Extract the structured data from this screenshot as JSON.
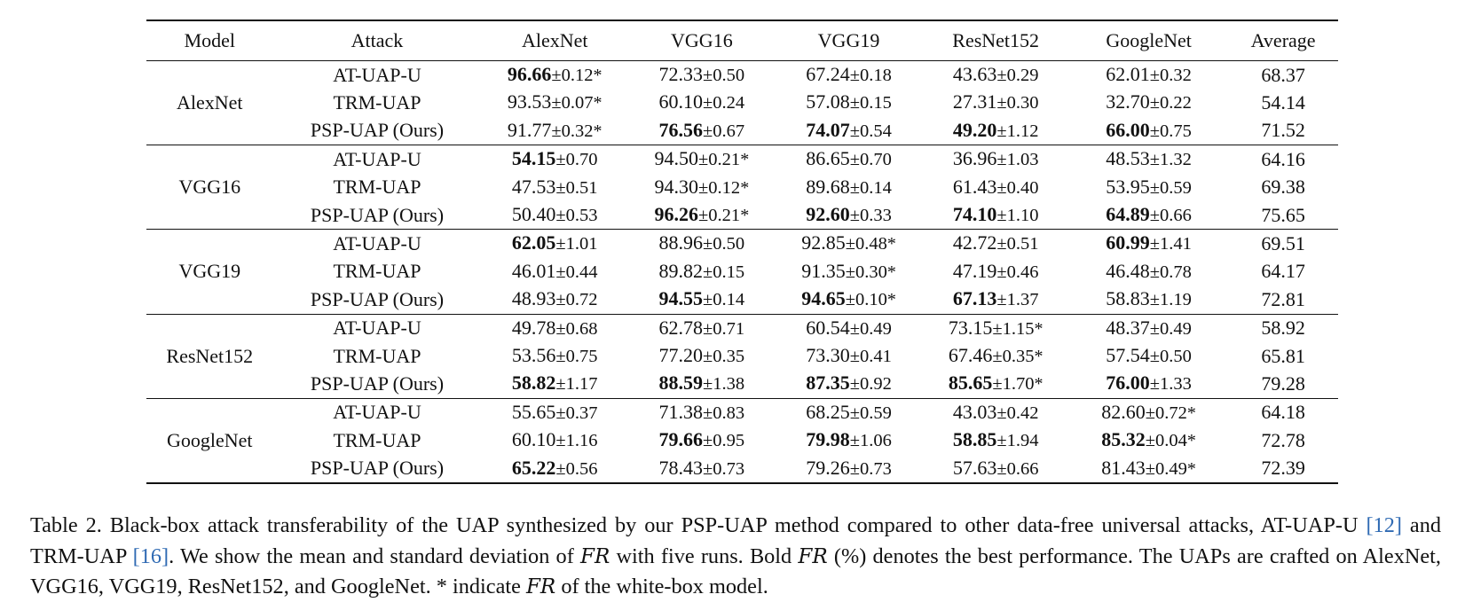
{
  "table": {
    "headers": [
      "Model",
      "Attack",
      "AlexNet",
      "VGG16",
      "VGG19",
      "ResNet152",
      "GoogleNet",
      "Average"
    ],
    "groups": [
      {
        "model": "AlexNet",
        "rows": [
          {
            "attack": "AT-UAP-U",
            "attack_bold": false,
            "cells": [
              {
                "v": "96.66",
                "pm": "±0.12",
                "star": "*",
                "b": true
              },
              {
                "v": "72.33",
                "pm": "±0.50",
                "star": "",
                "b": false
              },
              {
                "v": "67.24",
                "pm": "±0.18",
                "star": "",
                "b": false
              },
              {
                "v": "43.63",
                "pm": "±0.29",
                "star": "",
                "b": false
              },
              {
                "v": "62.01",
                "pm": "±0.32",
                "star": "",
                "b": false
              }
            ],
            "avg": "68.37",
            "avg_bold": false
          },
          {
            "attack": "TRM-UAP",
            "attack_bold": false,
            "cells": [
              {
                "v": "93.53",
                "pm": "±0.07",
                "star": "*",
                "b": false
              },
              {
                "v": "60.10",
                "pm": "±0.24",
                "star": "",
                "b": false
              },
              {
                "v": "57.08",
                "pm": "±0.15",
                "star": "",
                "b": false
              },
              {
                "v": "27.31",
                "pm": "±0.30",
                "star": "",
                "b": false
              },
              {
                "v": "32.70",
                "pm": "±0.22",
                "star": "",
                "b": false
              }
            ],
            "avg": "54.14",
            "avg_bold": false
          },
          {
            "attack": "PSP-UAP (Ours)",
            "attack_bold": true,
            "cells": [
              {
                "v": "91.77",
                "pm": "±0.32",
                "star": "*",
                "b": false
              },
              {
                "v": "76.56",
                "pm": "±0.67",
                "star": "",
                "b": true
              },
              {
                "v": "74.07",
                "pm": "±0.54",
                "star": "",
                "b": true
              },
              {
                "v": "49.20",
                "pm": "±1.12",
                "star": "",
                "b": true
              },
              {
                "v": "66.00",
                "pm": "±0.75",
                "star": "",
                "b": true
              }
            ],
            "avg": "71.52",
            "avg_bold": true
          }
        ]
      },
      {
        "model": "VGG16",
        "rows": [
          {
            "attack": "AT-UAP-U",
            "attack_bold": false,
            "cells": [
              {
                "v": "54.15",
                "pm": "±0.70",
                "star": "",
                "b": true
              },
              {
                "v": "94.50",
                "pm": "±0.21",
                "star": "*",
                "b": false
              },
              {
                "v": "86.65",
                "pm": "±0.70",
                "star": "",
                "b": false
              },
              {
                "v": "36.96",
                "pm": "±1.03",
                "star": "",
                "b": false
              },
              {
                "v": "48.53",
                "pm": "±1.32",
                "star": "",
                "b": false
              }
            ],
            "avg": "64.16",
            "avg_bold": false
          },
          {
            "attack": "TRM-UAP",
            "attack_bold": false,
            "cells": [
              {
                "v": "47.53",
                "pm": "±0.51",
                "star": "",
                "b": false
              },
              {
                "v": "94.30",
                "pm": "±0.12",
                "star": "*",
                "b": false
              },
              {
                "v": "89.68",
                "pm": "±0.14",
                "star": "",
                "b": false
              },
              {
                "v": "61.43",
                "pm": "±0.40",
                "star": "",
                "b": false
              },
              {
                "v": "53.95",
                "pm": "±0.59",
                "star": "",
                "b": false
              }
            ],
            "avg": "69.38",
            "avg_bold": false
          },
          {
            "attack": "PSP-UAP (Ours)",
            "attack_bold": true,
            "cells": [
              {
                "v": "50.40",
                "pm": "±0.53",
                "star": "",
                "b": false
              },
              {
                "v": "96.26",
                "pm": "±0.21",
                "star": "*",
                "b": true
              },
              {
                "v": "92.60",
                "pm": "±0.33",
                "star": "",
                "b": true
              },
              {
                "v": "74.10",
                "pm": "±1.10",
                "star": "",
                "b": true
              },
              {
                "v": "64.89",
                "pm": "±0.66",
                "star": "",
                "b": true
              }
            ],
            "avg": "75.65",
            "avg_bold": true
          }
        ]
      },
      {
        "model": "VGG19",
        "rows": [
          {
            "attack": "AT-UAP-U",
            "attack_bold": false,
            "cells": [
              {
                "v": "62.05",
                "pm": "±1.01",
                "star": "",
                "b": true
              },
              {
                "v": "88.96",
                "pm": "±0.50",
                "star": "",
                "b": false
              },
              {
                "v": "92.85",
                "pm": "±0.48",
                "star": "*",
                "b": false
              },
              {
                "v": "42.72",
                "pm": "±0.51",
                "star": "",
                "b": false
              },
              {
                "v": "60.99",
                "pm": "±1.41",
                "star": "",
                "b": true
              }
            ],
            "avg": "69.51",
            "avg_bold": false
          },
          {
            "attack": "TRM-UAP",
            "attack_bold": false,
            "cells": [
              {
                "v": "46.01",
                "pm": "±0.44",
                "star": "",
                "b": false
              },
              {
                "v": "89.82",
                "pm": "±0.15",
                "star": "",
                "b": false
              },
              {
                "v": "91.35",
                "pm": "±0.30",
                "star": "*",
                "b": false
              },
              {
                "v": "47.19",
                "pm": "±0.46",
                "star": "",
                "b": false
              },
              {
                "v": "46.48",
                "pm": "±0.78",
                "star": "",
                "b": false
              }
            ],
            "avg": "64.17",
            "avg_bold": false
          },
          {
            "attack": "PSP-UAP (Ours)",
            "attack_bold": true,
            "cells": [
              {
                "v": "48.93",
                "pm": "±0.72",
                "star": "",
                "b": false
              },
              {
                "v": "94.55",
                "pm": "±0.14",
                "star": "",
                "b": true
              },
              {
                "v": "94.65",
                "pm": "±0.10",
                "star": "*",
                "b": true
              },
              {
                "v": "67.13",
                "pm": "±1.37",
                "star": "",
                "b": true
              },
              {
                "v": "58.83",
                "pm": "±1.19",
                "star": "",
                "b": false
              }
            ],
            "avg": "72.81",
            "avg_bold": true
          }
        ]
      },
      {
        "model": "ResNet152",
        "rows": [
          {
            "attack": "AT-UAP-U",
            "attack_bold": false,
            "cells": [
              {
                "v": "49.78",
                "pm": "±0.68",
                "star": "",
                "b": false
              },
              {
                "v": "62.78",
                "pm": "±0.71",
                "star": "",
                "b": false
              },
              {
                "v": "60.54",
                "pm": "±0.49",
                "star": "",
                "b": false
              },
              {
                "v": "73.15",
                "pm": "±1.15",
                "star": "*",
                "b": false
              },
              {
                "v": "48.37",
                "pm": "±0.49",
                "star": "",
                "b": false
              }
            ],
            "avg": "58.92",
            "avg_bold": false
          },
          {
            "attack": "TRM-UAP",
            "attack_bold": false,
            "cells": [
              {
                "v": "53.56",
                "pm": "±0.75",
                "star": "",
                "b": false
              },
              {
                "v": "77.20",
                "pm": "±0.35",
                "star": "",
                "b": false
              },
              {
                "v": "73.30",
                "pm": "±0.41",
                "star": "",
                "b": false
              },
              {
                "v": "67.46",
                "pm": "±0.35",
                "star": "*",
                "b": false
              },
              {
                "v": "57.54",
                "pm": "±0.50",
                "star": "",
                "b": false
              }
            ],
            "avg": "65.81",
            "avg_bold": false
          },
          {
            "attack": "PSP-UAP (Ours)",
            "attack_bold": true,
            "cells": [
              {
                "v": "58.82",
                "pm": "±1.17",
                "star": "",
                "b": true
              },
              {
                "v": "88.59",
                "pm": "±1.38",
                "star": "",
                "b": true
              },
              {
                "v": "87.35",
                "pm": "±0.92",
                "star": "",
                "b": true
              },
              {
                "v": "85.65",
                "pm": "±1.70",
                "star": "*",
                "b": true
              },
              {
                "v": "76.00",
                "pm": "±1.33",
                "star": "",
                "b": true
              }
            ],
            "avg": "79.28",
            "avg_bold": true
          }
        ]
      },
      {
        "model": "GoogleNet",
        "rows": [
          {
            "attack": "AT-UAP-U",
            "attack_bold": false,
            "cells": [
              {
                "v": "55.65",
                "pm": "±0.37",
                "star": "",
                "b": false
              },
              {
                "v": "71.38",
                "pm": "±0.83",
                "star": "",
                "b": false
              },
              {
                "v": "68.25",
                "pm": "±0.59",
                "star": "",
                "b": false
              },
              {
                "v": "43.03",
                "pm": "±0.42",
                "star": "",
                "b": false
              },
              {
                "v": "82.60",
                "pm": "±0.72",
                "star": "*",
                "b": false
              }
            ],
            "avg": "64.18",
            "avg_bold": false
          },
          {
            "attack": "TRM-UAP",
            "attack_bold": false,
            "cells": [
              {
                "v": "60.10",
                "pm": "±1.16",
                "star": "",
                "b": false
              },
              {
                "v": "79.66",
                "pm": "±0.95",
                "star": "",
                "b": true
              },
              {
                "v": "79.98",
                "pm": "±1.06",
                "star": "",
                "b": true
              },
              {
                "v": "58.85",
                "pm": "±1.94",
                "star": "",
                "b": true
              },
              {
                "v": "85.32",
                "pm": "±0.04",
                "star": "*",
                "b": true
              }
            ],
            "avg": "72.78",
            "avg_bold": true
          },
          {
            "attack": "PSP-UAP (Ours)",
            "attack_bold": true,
            "cells": [
              {
                "v": "65.22",
                "pm": "±0.56",
                "star": "",
                "b": true
              },
              {
                "v": "78.43",
                "pm": "±0.73",
                "star": "",
                "b": false
              },
              {
                "v": "79.26",
                "pm": "±0.73",
                "star": "",
                "b": false
              },
              {
                "v": "57.63",
                "pm": "±0.66",
                "star": "",
                "b": false
              },
              {
                "v": "81.43",
                "pm": "±0.49",
                "star": "*",
                "b": false
              }
            ],
            "avg": "72.39",
            "avg_bold": false
          }
        ]
      }
    ]
  },
  "caption": {
    "label": "Table 2.",
    "s1": "Black-box attack transferability of the UAP synthesized by our PSP-UAP method compared to other data-free universal attacks, AT-UAP-U ",
    "ref1": "[12]",
    "s2": " and TRM-UAP ",
    "ref2": "[16]",
    "s3": ". We show the mean and standard deviation of ",
    "fr": "FR",
    "s4": " with five runs. Bold ",
    "s5": " (%) denotes the best performance. The UAPs are crafted on AlexNet, VGG16, VGG19, ResNet152, and GoogleNet. * indicate ",
    "s6": " of the white-box model."
  }
}
